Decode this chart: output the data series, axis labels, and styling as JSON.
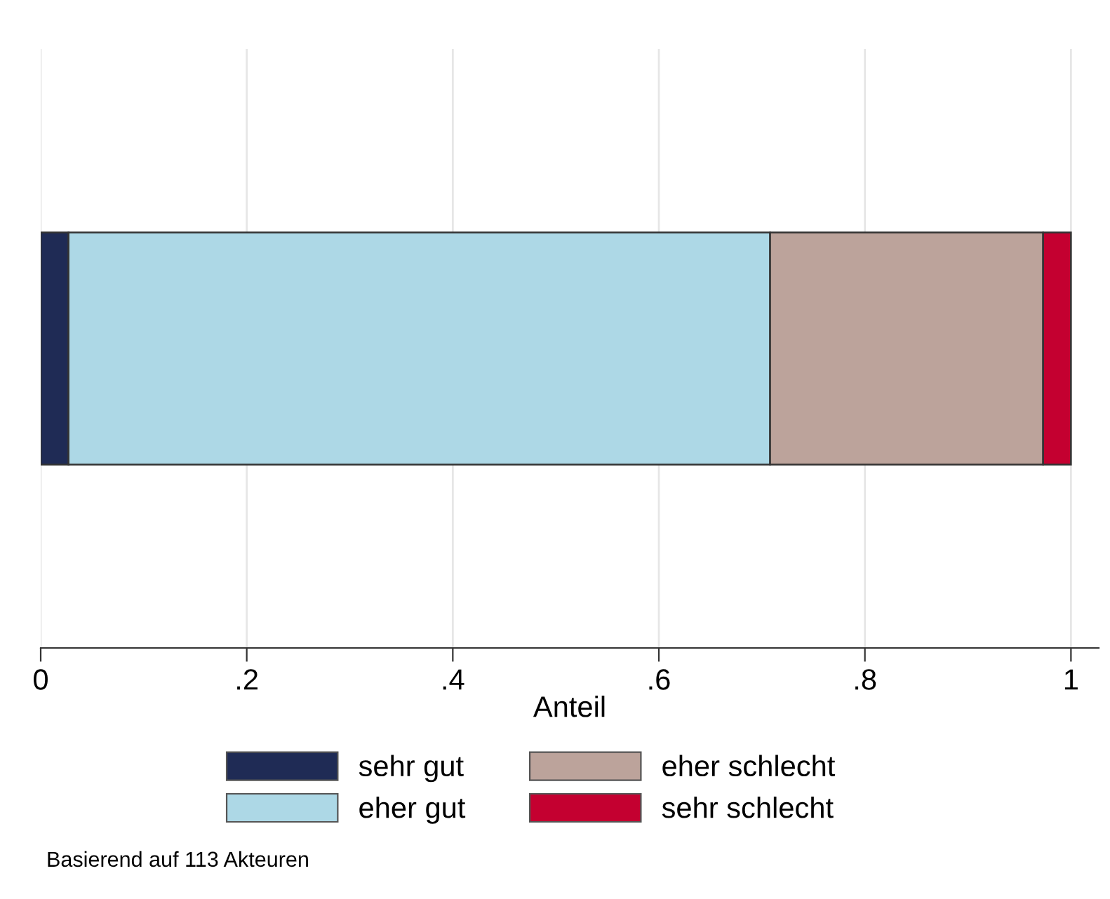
{
  "chart_data": {
    "type": "bar",
    "orientation": "horizontal",
    "stacked": true,
    "xlabel": "Anteil",
    "categories": [
      null
    ],
    "series": [
      {
        "name": "sehr gut",
        "color": "#1f2b55",
        "values": [
          0.027
        ]
      },
      {
        "name": "eher gut",
        "color": "#add8e6",
        "values": [
          0.681
        ]
      },
      {
        "name": "eher schlecht",
        "color": "#bca39b",
        "values": [
          0.265
        ]
      },
      {
        "name": "sehr schlecht",
        "color": "#c40030",
        "values": [
          0.027
        ]
      }
    ],
    "xlim": [
      0,
      1.027
    ],
    "xticks": [
      0,
      {
        "value": 0.2,
        "label": ".2"
      },
      {
        "value": 0.4,
        "label": ".4"
      },
      {
        "value": 0.6,
        "label": ".6"
      },
      {
        "value": 0.8,
        "label": ".8"
      },
      1
    ],
    "tick_labels": "x",
    "grid": "x",
    "legend": "bottom",
    "annotations": [
      "Basierend auf 113 Akteuren"
    ]
  }
}
